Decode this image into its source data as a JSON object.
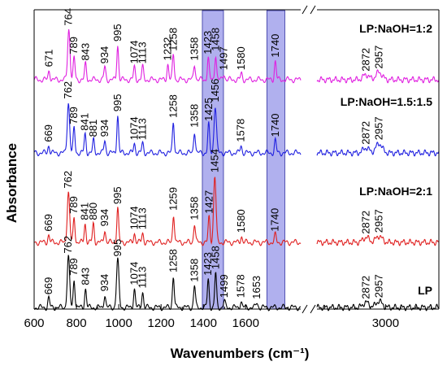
{
  "chart_data": {
    "type": "line",
    "title": "",
    "xlabel": "Wavenumbers (cm⁻¹)",
    "ylabel": "Absorbance",
    "x_segments": [
      {
        "xlim": [
          600,
          1860
        ],
        "ticks": [
          600,
          800,
          1000,
          1200,
          1400,
          1600
        ]
      },
      {
        "xlim": [
          2550,
          3350
        ],
        "ticks": [
          3000
        ]
      }
    ],
    "axis_break": "//",
    "highlight_bands": [
      {
        "from": 1395,
        "to": 1495,
        "color": "#7070e0"
      },
      {
        "from": 1700,
        "to": 1785,
        "color": "#7070e0"
      }
    ],
    "series": [
      {
        "name": "LP:NaOH=1:2",
        "color": "#e020e0",
        "peaks": [
          {
            "x": 671,
            "h": 0.15,
            "label": "671"
          },
          {
            "x": 764,
            "h": 0.8,
            "label": "764"
          },
          {
            "x": 789,
            "h": 0.35,
            "label": "789"
          },
          {
            "x": 843,
            "h": 0.25,
            "label": "843"
          },
          {
            "x": 934,
            "h": 0.2,
            "label": "934"
          },
          {
            "x": 995,
            "h": 0.55,
            "label": "995"
          },
          {
            "x": 1074,
            "h": 0.2,
            "label": "1074"
          },
          {
            "x": 1113,
            "h": 0.2,
            "label": "1113"
          },
          {
            "x": 1232,
            "h": 0.25,
            "label": "1232"
          },
          {
            "x": 1258,
            "h": 0.4,
            "label": "1258"
          },
          {
            "x": 1358,
            "h": 0.25,
            "label": "1358"
          },
          {
            "x": 1423,
            "h": 0.35,
            "label": "1423"
          },
          {
            "x": 1458,
            "h": 0.4,
            "label": "1458"
          },
          {
            "x": 1497,
            "h": 0.1,
            "label": "1497"
          },
          {
            "x": 1580,
            "h": 0.1,
            "label": "1580"
          },
          {
            "x": 1740,
            "h": 0.3,
            "label": "1740"
          },
          {
            "x": 2872,
            "h": 0.08,
            "label": "2872"
          },
          {
            "x": 2957,
            "h": 0.12,
            "label": "2957"
          }
        ]
      },
      {
        "name": "LP:NaOH=1.5:1.5",
        "color": "#2020e0",
        "peaks": [
          {
            "x": 669,
            "h": 0.12,
            "label": "669"
          },
          {
            "x": 762,
            "h": 0.8,
            "label": "762"
          },
          {
            "x": 789,
            "h": 0.4,
            "label": "789"
          },
          {
            "x": 841,
            "h": 0.3,
            "label": "841"
          },
          {
            "x": 881,
            "h": 0.2,
            "label": "881"
          },
          {
            "x": 934,
            "h": 0.2,
            "label": "934"
          },
          {
            "x": 995,
            "h": 0.6,
            "label": "995"
          },
          {
            "x": 1074,
            "h": 0.15,
            "label": "1074"
          },
          {
            "x": 1113,
            "h": 0.15,
            "label": "1113"
          },
          {
            "x": 1258,
            "h": 0.5,
            "label": "1258"
          },
          {
            "x": 1358,
            "h": 0.35,
            "label": "1358"
          },
          {
            "x": 1425,
            "h": 0.45,
            "label": "1425"
          },
          {
            "x": 1456,
            "h": 0.75,
            "label": "1456"
          },
          {
            "x": 1578,
            "h": 0.12,
            "label": "1578"
          },
          {
            "x": 1740,
            "h": 0.2,
            "label": "1740"
          },
          {
            "x": 2872,
            "h": 0.08,
            "label": "2872"
          },
          {
            "x": 2957,
            "h": 0.15,
            "label": "2957"
          }
        ]
      },
      {
        "name": "LP:NaOH=2:1",
        "color": "#e02020",
        "peaks": [
          {
            "x": 669,
            "h": 0.12,
            "label": "669"
          },
          {
            "x": 762,
            "h": 0.8,
            "label": "762"
          },
          {
            "x": 789,
            "h": 0.4,
            "label": "789"
          },
          {
            "x": 841,
            "h": 0.3,
            "label": "841"
          },
          {
            "x": 880,
            "h": 0.3,
            "label": "880"
          },
          {
            "x": 934,
            "h": 0.2,
            "label": "934"
          },
          {
            "x": 995,
            "h": 0.55,
            "label": "995"
          },
          {
            "x": 1074,
            "h": 0.15,
            "label": "1074"
          },
          {
            "x": 1113,
            "h": 0.15,
            "label": "1113"
          },
          {
            "x": 1259,
            "h": 0.45,
            "label": "1259"
          },
          {
            "x": 1358,
            "h": 0.3,
            "label": "1358"
          },
          {
            "x": 1427,
            "h": 0.4,
            "label": "1427"
          },
          {
            "x": 1454,
            "h": 1.05,
            "label": "1454"
          },
          {
            "x": 1580,
            "h": 0.1,
            "label": "1580"
          },
          {
            "x": 1740,
            "h": 0.12,
            "label": "1740"
          },
          {
            "x": 2872,
            "h": 0.08,
            "label": "2872"
          },
          {
            "x": 2957,
            "h": 0.1,
            "label": "2957"
          }
        ]
      },
      {
        "name": "LP",
        "color": "#000000",
        "peaks": [
          {
            "x": 669,
            "h": 0.15,
            "label": "669"
          },
          {
            "x": 762,
            "h": 0.8,
            "label": "762"
          },
          {
            "x": 789,
            "h": 0.45,
            "label": "789"
          },
          {
            "x": 843,
            "h": 0.3,
            "label": "843"
          },
          {
            "x": 934,
            "h": 0.2,
            "label": "934"
          },
          {
            "x": 995,
            "h": 0.75,
            "label": "995"
          },
          {
            "x": 1074,
            "h": 0.3,
            "label": "1074"
          },
          {
            "x": 1113,
            "h": 0.25,
            "label": "1113"
          },
          {
            "x": 1258,
            "h": 0.5,
            "label": "1258"
          },
          {
            "x": 1358,
            "h": 0.35,
            "label": "1358"
          },
          {
            "x": 1423,
            "h": 0.45,
            "label": "1423"
          },
          {
            "x": 1458,
            "h": 0.55,
            "label": "1458"
          },
          {
            "x": 1499,
            "h": 0.1,
            "label": "1499"
          },
          {
            "x": 1578,
            "h": 0.1,
            "label": "1578"
          },
          {
            "x": 1653,
            "h": 0.08,
            "label": "1653"
          },
          {
            "x": 2872,
            "h": 0.08,
            "label": "2872"
          },
          {
            "x": 2957,
            "h": 0.1,
            "label": "2957"
          }
        ]
      }
    ]
  }
}
